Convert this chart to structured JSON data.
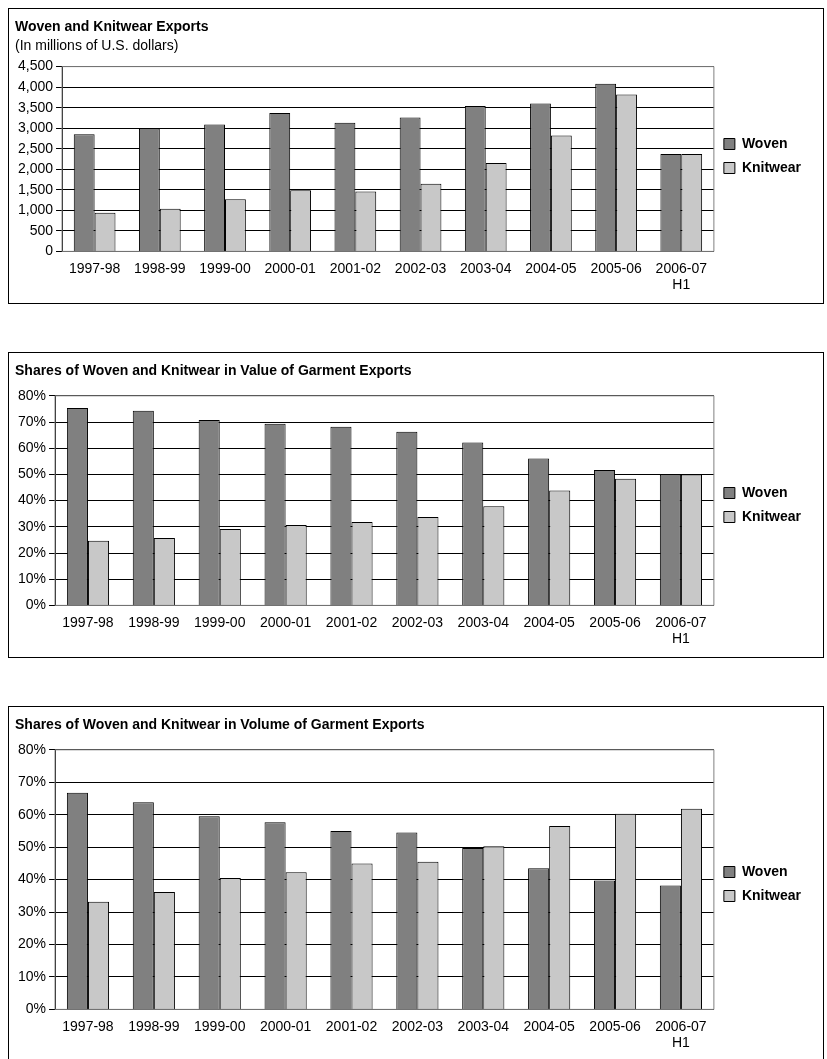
{
  "chart_data": [
    {
      "type": "bar",
      "title": "Woven and Knitwear Exports",
      "subtitle": "(In millions of U.S. dollars)",
      "categories": [
        "1997-98",
        "1998-99",
        "1999-00",
        "2000-01",
        "2001-02",
        "2002-03",
        "2003-04",
        "2004-05",
        "2005-06",
        "2006-07 H1"
      ],
      "series": [
        {
          "name": "Woven",
          "color": "#808080",
          "values": [
            2850,
            2990,
            3090,
            3370,
            3130,
            3260,
            3540,
            3600,
            4080,
            2370
          ]
        },
        {
          "name": "Knitwear",
          "color": "#c8c8c8",
          "values": [
            940,
            1040,
            1270,
            1490,
            1460,
            1650,
            2150,
            2820,
            3820,
            2370
          ]
        }
      ],
      "ylim": [
        0,
        4500
      ],
      "yticks": [
        {
          "value": 0,
          "label": "0"
        },
        {
          "value": 500,
          "label": "500"
        },
        {
          "value": 1000,
          "label": "1,000"
        },
        {
          "value": 1500,
          "label": "1,500"
        },
        {
          "value": 2000,
          "label": "2,000"
        },
        {
          "value": 2500,
          "label": "2,500"
        },
        {
          "value": 3000,
          "label": "3,000"
        },
        {
          "value": 3500,
          "label": "3,500"
        },
        {
          "value": 4000,
          "label": "4,000"
        },
        {
          "value": 4500,
          "label": "4,500"
        }
      ],
      "grid": "y",
      "legend": "right"
    },
    {
      "type": "bar",
      "title": "Shares of Woven and Knitwear in Value of Garment Exports",
      "categories": [
        "1997-98",
        "1998-99",
        "1999-00",
        "2000-01",
        "2001-02",
        "2002-03",
        "2003-04",
        "2004-05",
        "2005-06",
        "2006-07 H1"
      ],
      "series": [
        {
          "name": "Woven",
          "color": "#808080",
          "values": [
            75.3,
            74.3,
            70.8,
            69.3,
            68.2,
            66.3,
            62.2,
            56.1,
            51.7,
            50.0
          ]
        },
        {
          "name": "Knitwear",
          "color": "#c8c8c8",
          "values": [
            24.7,
            25.7,
            29.2,
            30.7,
            31.8,
            33.7,
            37.8,
            43.9,
            48.3,
            50.0
          ]
        }
      ],
      "ylim": [
        0,
        80
      ],
      "yticks": [
        {
          "value": 0,
          "label": "0%"
        },
        {
          "value": 10,
          "label": "10%"
        },
        {
          "value": 20,
          "label": "20%"
        },
        {
          "value": 30,
          "label": "30%"
        },
        {
          "value": 40,
          "label": "40%"
        },
        {
          "value": 50,
          "label": "50%"
        },
        {
          "value": 60,
          "label": "60%"
        },
        {
          "value": 70,
          "label": "70%"
        },
        {
          "value": 80,
          "label": "80%"
        }
      ],
      "grid": "y",
      "legend": "right"
    },
    {
      "type": "bar",
      "title": "Shares of Woven and Knitwear in Volume of Garment Exports",
      "categories": [
        "1997-98",
        "1998-99",
        "1999-00",
        "2000-01",
        "2001-02",
        "2002-03",
        "2003-04",
        "2004-05",
        "2005-06",
        "2006-07 H1"
      ],
      "series": [
        {
          "name": "Woven",
          "color": "#808080",
          "values": [
            66.8,
            63.8,
            59.5,
            57.7,
            55.0,
            54.5,
            49.7,
            43.5,
            39.7,
            38.2
          ]
        },
        {
          "name": "Knitwear",
          "color": "#c8c8c8",
          "values": [
            33.2,
            36.2,
            40.5,
            42.3,
            45.0,
            45.5,
            50.3,
            56.5,
            60.3,
            61.8
          ]
        }
      ],
      "ylim": [
        0,
        80
      ],
      "yticks": [
        {
          "value": 0,
          "label": "0%"
        },
        {
          "value": 10,
          "label": "10%"
        },
        {
          "value": 20,
          "label": "20%"
        },
        {
          "value": 30,
          "label": "30%"
        },
        {
          "value": 40,
          "label": "40%"
        },
        {
          "value": 50,
          "label": "50%"
        },
        {
          "value": 60,
          "label": "60%"
        },
        {
          "value": 70,
          "label": "70%"
        },
        {
          "value": 80,
          "label": "80%"
        }
      ],
      "grid": "y",
      "legend": "right"
    }
  ]
}
